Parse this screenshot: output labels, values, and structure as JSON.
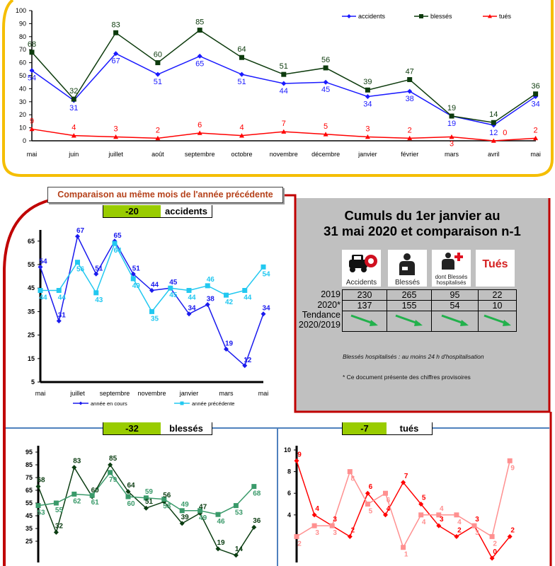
{
  "colors": {
    "frame_top": "#f5be00",
    "frame_red": "#c00000",
    "divider_blue": "#4f81bd",
    "delta_green": "#99cc00",
    "panel_gray": "#c0c0c0",
    "trend_green": "#22b14c"
  },
  "comparison": {
    "title": "Comparaison au même mois de l'année précédente",
    "accidents": {
      "delta": "-20",
      "label": "accidents"
    },
    "blesses": {
      "delta": "-32",
      "label": "blessés"
    },
    "tues": {
      "delta": "-7",
      "label": "tués"
    }
  },
  "cumuls": {
    "title_line1": "Cumuls du 1er janvier au",
    "title_line2": "31 mai 2020 et comparaison n-1",
    "pictos": [
      {
        "icon": "car-crash-icon",
        "caption": "Accidents"
      },
      {
        "icon": "injured-person-icon",
        "caption": "Blessés"
      },
      {
        "icon": "hospitalized-person-icon",
        "caption": "dont Blessés hospitalisés"
      },
      {
        "icon": "killed-icon",
        "caption": "Tués"
      }
    ],
    "row_labels": [
      "2019",
      "2020*",
      "Tendance 2020/2019"
    ],
    "values_2019": [
      "230",
      "265",
      "95",
      "22"
    ],
    "values_2020": [
      "137",
      "155",
      "54",
      "10"
    ],
    "trend": [
      "down",
      "down",
      "down",
      "down"
    ],
    "note1": "Blessés hospitalisés : au moins 24 h d'hospitalisation",
    "note2": "* Ce document présente des chiffres provisoires"
  },
  "chart_data": [
    {
      "type": "line",
      "title": "",
      "xlabel": "",
      "ylabel": "",
      "x": [
        "mai",
        "juin",
        "juillet",
        "août",
        "septembre",
        "octobre",
        "novembre",
        "décembre",
        "janvier",
        "février",
        "mars",
        "avril",
        "mai"
      ],
      "xtick_labels": [
        "mai",
        "juin",
        "juillet",
        "août",
        "septembre",
        "octobre",
        "novembre",
        "décembre",
        "janvier",
        "février",
        "mars",
        "avril",
        "mai"
      ],
      "yticks": [
        0,
        10,
        20,
        30,
        40,
        50,
        60,
        70,
        80,
        90,
        100
      ],
      "ylim": [
        0,
        100
      ],
      "legend": "top-right",
      "series": [
        {
          "name": "accidents",
          "color": "#1a1aff",
          "marker": "diamond",
          "values": [
            54,
            31,
            67,
            51,
            65,
            51,
            44,
            45,
            34,
            38,
            19,
            12,
            34
          ]
        },
        {
          "name": "blessés",
          "color": "#0d3b0d",
          "marker": "square",
          "values": [
            68,
            32,
            83,
            60,
            85,
            64,
            51,
            56,
            39,
            47,
            19,
            14,
            36
          ]
        },
        {
          "name": "tués",
          "color": "#ff0000",
          "marker": "triangle",
          "values": [
            9,
            4,
            3,
            2,
            6,
            4,
            7,
            5,
            3,
            2,
            3,
            0,
            2
          ]
        }
      ]
    },
    {
      "type": "line",
      "title": "accidents",
      "xtick_labels": [
        "mai",
        "",
        "juillet",
        "",
        "septembre",
        "",
        "novembre",
        "",
        "janvier",
        "",
        "mars",
        "",
        "mai"
      ],
      "yticks": [
        5,
        15,
        25,
        35,
        45,
        55,
        65
      ],
      "ylim": [
        5,
        70
      ],
      "legend": "bottom",
      "series": [
        {
          "name": "année en cours",
          "color": "#1a1aee",
          "marker": "diamond",
          "values": [
            54,
            31,
            67,
            51,
            65,
            51,
            44,
            45,
            34,
            38,
            19,
            12,
            34
          ]
        },
        {
          "name": "année précédente",
          "color": "#22c8f0",
          "marker": "square",
          "values": [
            44,
            44,
            56,
            43,
            64,
            49,
            35,
            45,
            44,
            46,
            42,
            44,
            54
          ]
        }
      ]
    },
    {
      "type": "line",
      "title": "blessés",
      "yticks": [
        25,
        35,
        45,
        55,
        65,
        75,
        85,
        95
      ],
      "ylim": [
        25,
        95
      ],
      "series": [
        {
          "name": "année en cours",
          "color": "#0b3d12",
          "marker": "diamond",
          "values": [
            68,
            32,
            83,
            60,
            85,
            64,
            51,
            56,
            39,
            47,
            19,
            14,
            36
          ]
        },
        {
          "name": "année précédente",
          "color": "#3a9a6a",
          "marker": "square",
          "values": [
            53,
            55,
            62,
            61,
            79,
            60,
            59,
            58,
            49,
            49,
            46,
            53,
            68
          ]
        }
      ]
    },
    {
      "type": "line",
      "title": "tués",
      "yticks": [
        4,
        6,
        8,
        10
      ],
      "ylim": [
        0,
        10
      ],
      "series": [
        {
          "name": "année en cours",
          "color": "#ff0000",
          "marker": "diamond",
          "values": [
            9,
            4,
            3,
            2,
            6,
            4,
            7,
            5,
            3,
            2,
            3,
            0,
            2
          ]
        },
        {
          "name": "année précédente",
          "color": "#ff9090",
          "marker": "square",
          "values": [
            2,
            3,
            3,
            8,
            5,
            6,
            1,
            4,
            4,
            4,
            3,
            2,
            9
          ]
        }
      ]
    }
  ]
}
